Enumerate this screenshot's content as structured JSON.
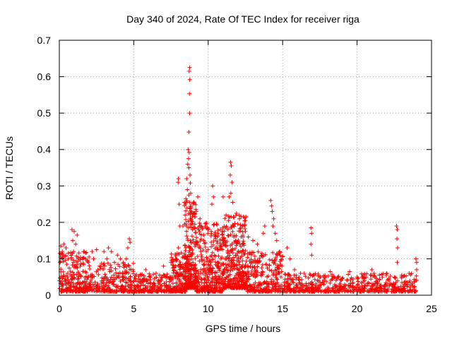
{
  "chart_data": {
    "type": "scatter",
    "title": "Day 340 of 2024, Rate Of TEC Index for receiver riga",
    "xlabel": "GPS time / hours",
    "ylabel": "ROTI / TECUs",
    "xlim": [
      0,
      25
    ],
    "ylim": [
      0,
      0.7
    ],
    "xticks": [
      "0",
      "5",
      "10",
      "15",
      "20",
      "25"
    ],
    "yticks": [
      "0",
      "0.1",
      "0.2",
      "0.3",
      "0.4",
      "0.5",
      "0.6",
      "0.7"
    ],
    "grid": true,
    "marker": "+",
    "color": "#ff0000",
    "series": [
      {
        "name": "ROTI",
        "points": [
          [
            8.75,
            0.625
          ],
          [
            8.72,
            0.615
          ],
          [
            8.76,
            0.592
          ],
          [
            8.74,
            0.553
          ],
          [
            8.75,
            0.5
          ],
          [
            8.7,
            0.448
          ],
          [
            8.65,
            0.4
          ],
          [
            8.72,
            0.392
          ],
          [
            8.68,
            0.375
          ],
          [
            8.62,
            0.36
          ],
          [
            8.7,
            0.35
          ],
          [
            8.78,
            0.33
          ],
          [
            8.55,
            0.32
          ],
          [
            8.8,
            0.308
          ],
          [
            8.6,
            0.29
          ],
          [
            8.7,
            0.275
          ],
          [
            8.82,
            0.28
          ],
          [
            8.5,
            0.265
          ],
          [
            8.74,
            0.255
          ],
          [
            8.58,
            0.24
          ],
          [
            8.9,
            0.23
          ],
          [
            8.45,
            0.22
          ],
          [
            8.85,
            0.205
          ],
          [
            8.3,
            0.19
          ],
          [
            8.95,
            0.18
          ],
          [
            8.0,
            0.32
          ],
          [
            7.98,
            0.31
          ],
          [
            8.05,
            0.25
          ],
          [
            8.1,
            0.19
          ],
          [
            8.0,
            0.13
          ],
          [
            9.3,
            0.27
          ],
          [
            9.2,
            0.23
          ],
          [
            9.45,
            0.21
          ],
          [
            9.1,
            0.195
          ],
          [
            9.6,
            0.185
          ],
          [
            10.0,
            0.18
          ],
          [
            10.2,
            0.175
          ],
          [
            10.4,
            0.195
          ],
          [
            10.3,
            0.3
          ],
          [
            10.35,
            0.27
          ],
          [
            10.25,
            0.25
          ],
          [
            10.5,
            0.16
          ],
          [
            11.5,
            0.365
          ],
          [
            11.55,
            0.355
          ],
          [
            11.48,
            0.33
          ],
          [
            11.6,
            0.31
          ],
          [
            11.52,
            0.28
          ],
          [
            11.4,
            0.27
          ],
          [
            11.65,
            0.255
          ],
          [
            11.0,
            0.27
          ],
          [
            11.2,
            0.22
          ],
          [
            11.7,
            0.215
          ],
          [
            11.9,
            0.225
          ],
          [
            12.1,
            0.21
          ],
          [
            12.3,
            0.19
          ],
          [
            12.5,
            0.175
          ],
          [
            12.7,
            0.16
          ],
          [
            13.0,
            0.15
          ],
          [
            13.3,
            0.14
          ],
          [
            14.2,
            0.26
          ],
          [
            14.25,
            0.245
          ],
          [
            14.3,
            0.23
          ],
          [
            14.4,
            0.21
          ],
          [
            14.35,
            0.19
          ],
          [
            14.5,
            0.17
          ],
          [
            13.8,
            0.19
          ],
          [
            13.7,
            0.17
          ],
          [
            14.6,
            0.15
          ],
          [
            14.8,
            0.12
          ],
          [
            15.3,
            0.13
          ],
          [
            15.5,
            0.1
          ],
          [
            16.9,
            0.185
          ],
          [
            16.95,
            0.17
          ],
          [
            16.9,
            0.14
          ],
          [
            16.95,
            0.11
          ],
          [
            22.65,
            0.19
          ],
          [
            22.7,
            0.18
          ],
          [
            22.68,
            0.155
          ],
          [
            22.72,
            0.13
          ],
          [
            22.7,
            0.09
          ],
          [
            23.95,
            0.1
          ],
          [
            24.0,
            0.09
          ],
          [
            24.0,
            0.07
          ],
          [
            0.1,
            0.135
          ],
          [
            0.3,
            0.14
          ],
          [
            0.45,
            0.13
          ],
          [
            0.2,
            0.12
          ],
          [
            0.6,
            0.1
          ],
          [
            0.05,
            0.09
          ],
          [
            0.5,
            0.085
          ],
          [
            0.85,
            0.18
          ],
          [
            1.0,
            0.175
          ],
          [
            1.2,
            0.165
          ],
          [
            0.9,
            0.15
          ],
          [
            1.1,
            0.14
          ],
          [
            0.95,
            0.12
          ],
          [
            0.8,
            0.1
          ],
          [
            2.2,
            0.12
          ],
          [
            2.5,
            0.125
          ],
          [
            2.3,
            0.1
          ],
          [
            2.7,
            0.08
          ],
          [
            3.0,
            0.12
          ],
          [
            3.3,
            0.13
          ],
          [
            3.5,
            0.12
          ],
          [
            3.2,
            0.1
          ],
          [
            3.7,
            0.09
          ],
          [
            3.9,
            0.11
          ],
          [
            4.1,
            0.1
          ],
          [
            4.3,
            0.09
          ],
          [
            4.7,
            0.155
          ],
          [
            4.75,
            0.145
          ],
          [
            4.6,
            0.13
          ],
          [
            4.5,
            0.1
          ],
          [
            5.8,
            0.07
          ],
          [
            6.5,
            0.06
          ],
          [
            7.0,
            0.08
          ],
          [
            7.5,
            0.09
          ],
          [
            7.7,
            0.07
          ],
          [
            15.8,
            0.07
          ],
          [
            16.2,
            0.06
          ],
          [
            17.5,
            0.05
          ],
          [
            18.2,
            0.065
          ],
          [
            18.7,
            0.05
          ],
          [
            19.0,
            0.045
          ],
          [
            19.5,
            0.065
          ],
          [
            20.0,
            0.05
          ],
          [
            20.5,
            0.04
          ],
          [
            21.0,
            0.07
          ],
          [
            21.5,
            0.055
          ],
          [
            22.0,
            0.06
          ],
          [
            23.0,
            0.055
          ],
          [
            23.5,
            0.06
          ]
        ],
        "density_clusters": [
          {
            "x_range": [
              0,
              2
            ],
            "y_range": [
              0.01,
              0.12
            ],
            "count": 220
          },
          {
            "x_range": [
              2,
              5
            ],
            "y_range": [
              0.01,
              0.09
            ],
            "count": 230
          },
          {
            "x_range": [
              5,
              7.5
            ],
            "y_range": [
              0.01,
              0.06
            ],
            "count": 200
          },
          {
            "x_range": [
              7.5,
              8.5
            ],
            "y_range": [
              0.01,
              0.12
            ],
            "count": 150
          },
          {
            "x_range": [
              8.4,
              9.2
            ],
            "y_range": [
              0.02,
              0.26
            ],
            "count": 260
          },
          {
            "x_range": [
              9.2,
              11
            ],
            "y_range": [
              0.01,
              0.2
            ],
            "count": 320
          },
          {
            "x_range": [
              11,
              12.6
            ],
            "y_range": [
              0.02,
              0.22
            ],
            "count": 340
          },
          {
            "x_range": [
              12.6,
              15
            ],
            "y_range": [
              0.01,
              0.12
            ],
            "count": 260
          },
          {
            "x_range": [
              15,
              19.5
            ],
            "y_range": [
              0.01,
              0.06
            ],
            "count": 280
          },
          {
            "x_range": [
              19.5,
              24
            ],
            "y_range": [
              0.01,
              0.06
            ],
            "count": 270
          }
        ]
      }
    ]
  }
}
